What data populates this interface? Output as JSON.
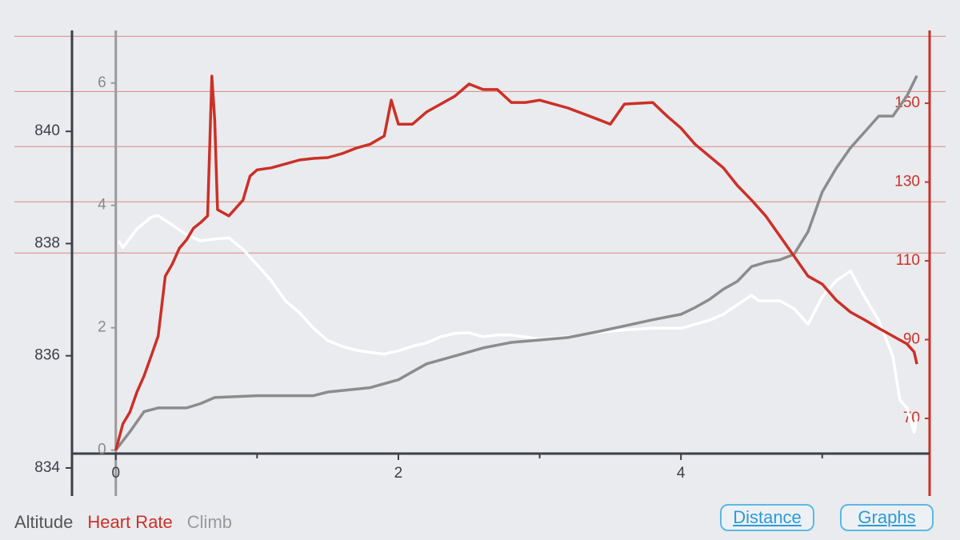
{
  "chart_data": {
    "type": "line",
    "xlim": [
      -0.31,
      5.76
    ],
    "xticks": [
      0,
      2,
      4
    ],
    "xminor_ticks": [
      1,
      3,
      5
    ],
    "ylim": [
      833.5,
      841.8
    ],
    "yticks": [
      834,
      836,
      838,
      840
    ],
    "y2lim": [
      50.3,
      168.5
    ],
    "y2ticks": [
      70,
      90,
      110,
      130,
      150
    ],
    "y3lim": [
      -0.75,
      6.86
    ],
    "y3ticks": [
      0,
      2,
      4,
      6
    ],
    "hr_zones": [
      112,
      125,
      139,
      153,
      167
    ],
    "hr_zone_color": "#d98a80",
    "series": [
      {
        "name": "Altitude",
        "color": "#ffffff",
        "label_color": "#555555",
        "axis": "y",
        "x": [
          0.02,
          0.05,
          0.15,
          0.25,
          0.3,
          0.4,
          0.5,
          0.6,
          0.7,
          0.8,
          0.9,
          1.0,
          1.1,
          1.2,
          1.3,
          1.4,
          1.5,
          1.6,
          1.7,
          1.8,
          1.9,
          2.0,
          2.1,
          2.2,
          2.3,
          2.4,
          2.5,
          2.6,
          2.7,
          2.8,
          3.0,
          3.2,
          3.4,
          3.6,
          3.8,
          4.0,
          4.2,
          4.3,
          4.4,
          4.5,
          4.55,
          4.7,
          4.8,
          4.9,
          5.0,
          5.1,
          5.2,
          5.3,
          5.4,
          5.5,
          5.55,
          5.6,
          5.65,
          5.67
        ],
        "values": [
          838.05,
          837.93,
          838.26,
          838.47,
          838.5,
          838.33,
          838.16,
          838.05,
          838.08,
          838.1,
          837.9,
          837.62,
          837.34,
          836.98,
          836.77,
          836.49,
          836.27,
          836.17,
          836.1,
          836.06,
          836.03,
          836.09,
          836.17,
          836.23,
          836.34,
          836.4,
          836.41,
          836.34,
          836.37,
          836.37,
          836.3,
          836.34,
          836.41,
          836.46,
          836.49,
          836.49,
          836.63,
          836.74,
          836.91,
          837.08,
          836.98,
          836.98,
          836.84,
          836.56,
          837.05,
          837.34,
          837.51,
          837.05,
          836.63,
          835.99,
          835.21,
          835.07,
          834.64,
          834.92
        ]
      },
      {
        "name": "Heart Rate",
        "color": "#cc3026",
        "label_color": "#cc3026",
        "axis": "y2",
        "x": [
          0.0,
          0.05,
          0.1,
          0.15,
          0.2,
          0.25,
          0.3,
          0.35,
          0.4,
          0.45,
          0.5,
          0.55,
          0.6,
          0.65,
          0.68,
          0.7,
          0.72,
          0.8,
          0.9,
          0.95,
          1.0,
          1.1,
          1.2,
          1.3,
          1.4,
          1.5,
          1.6,
          1.7,
          1.8,
          1.9,
          1.95,
          2.0,
          2.1,
          2.2,
          2.3,
          2.4,
          2.5,
          2.6,
          2.7,
          2.8,
          2.9,
          3.0,
          3.2,
          3.4,
          3.5,
          3.6,
          3.8,
          3.9,
          4.0,
          4.1,
          4.2,
          4.3,
          4.4,
          4.5,
          4.6,
          4.7,
          4.8,
          4.9,
          5.0,
          5.1,
          5.2,
          5.3,
          5.4,
          5.5,
          5.6,
          5.65,
          5.67
        ],
        "values": [
          61.9,
          68.6,
          71.6,
          76.7,
          80.8,
          85.8,
          90.9,
          106.1,
          109.2,
          113.2,
          115.3,
          118.3,
          119.7,
          121.4,
          156.9,
          145.7,
          123,
          121.4,
          125.4,
          131.5,
          133.1,
          133.6,
          134.6,
          135.6,
          136,
          136.2,
          137.2,
          138.6,
          139.6,
          141.7,
          150.8,
          144.7,
          144.7,
          147.8,
          149.8,
          151.8,
          154.9,
          153.5,
          153.5,
          150.2,
          150.2,
          150.8,
          148.8,
          146.1,
          144.7,
          149.8,
          150.2,
          146.8,
          143.7,
          139.6,
          136.6,
          133.6,
          129.1,
          125.4,
          121.4,
          116.3,
          111.2,
          106.1,
          104.1,
          100,
          97,
          95,
          92.9,
          90.9,
          88.9,
          86.9,
          83.8
        ]
      },
      {
        "name": "Climb",
        "color": "#8c8c8c",
        "label_color": "#9a9a9a",
        "axis": "y3",
        "x": [
          0,
          0.1,
          0.2,
          0.3,
          0.5,
          0.6,
          0.7,
          1.0,
          1.4,
          1.5,
          1.8,
          2.0,
          2.1,
          2.2,
          2.4,
          2.6,
          2.8,
          3.0,
          3.2,
          3.4,
          3.6,
          3.8,
          4.0,
          4.1,
          4.2,
          4.3,
          4.4,
          4.5,
          4.6,
          4.7,
          4.8,
          4.9,
          5.0,
          5.1,
          5.2,
          5.3,
          5.4,
          5.5,
          5.6,
          5.67
        ],
        "values": [
          0,
          0.3,
          0.63,
          0.69,
          0.69,
          0.76,
          0.86,
          0.89,
          0.89,
          0.95,
          1.02,
          1.15,
          1.28,
          1.41,
          1.54,
          1.67,
          1.76,
          1.8,
          1.84,
          1.93,
          2.03,
          2.13,
          2.22,
          2.33,
          2.46,
          2.63,
          2.76,
          3.0,
          3.07,
          3.11,
          3.2,
          3.57,
          4.22,
          4.61,
          4.94,
          5.2,
          5.46,
          5.46,
          5.79,
          6.12
        ]
      }
    ]
  },
  "buttons": [
    "Distance",
    "Graphs"
  ]
}
